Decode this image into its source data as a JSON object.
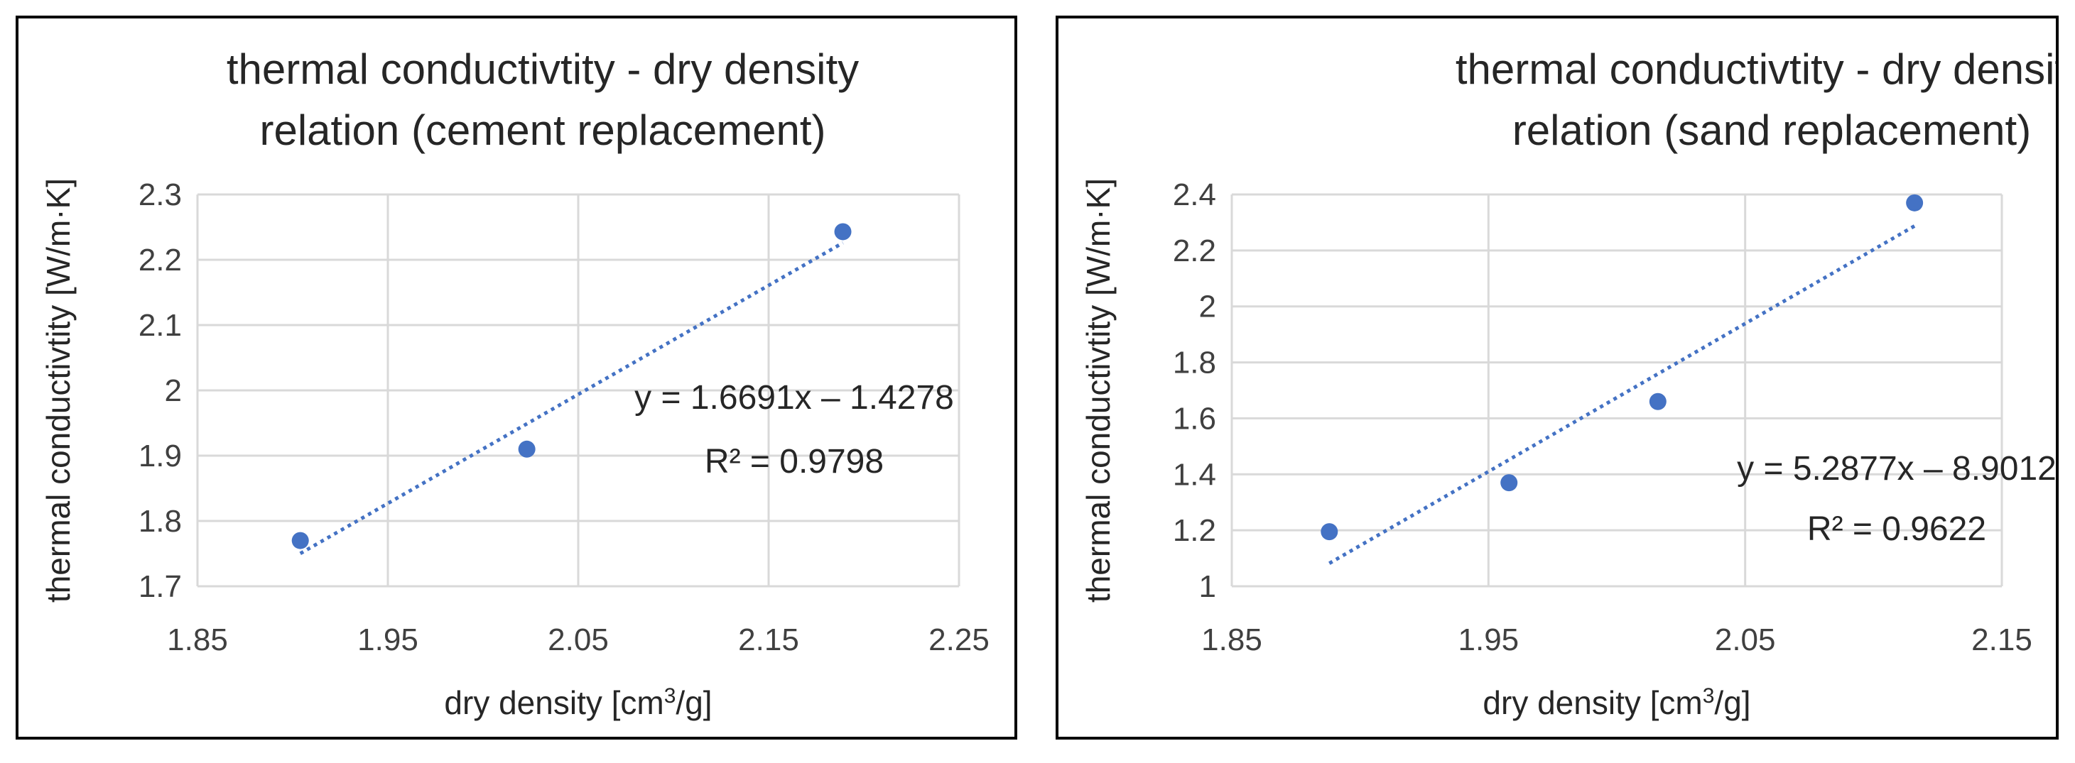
{
  "colors": {
    "marker": "#4472c4",
    "trend": "#4472c4",
    "grid": "#d9d9d9",
    "text": "#262626",
    "tick": "#404040"
  },
  "chart_data": [
    {
      "type": "scatter",
      "title": [
        "thermal conductivtity - dry density",
        "relation (cement replacement)"
      ],
      "xlabel": "dry density [cm",
      "xlabel_sup": "3",
      "xlabel_tail": "/g]",
      "ylabel": "thermal conductivtity [W/m·K]",
      "xlim": [
        1.85,
        2.25
      ],
      "ylim": [
        1.7,
        2.3
      ],
      "xticks": [
        1.85,
        1.95,
        2.05,
        2.15,
        2.25
      ],
      "xtick_labels": [
        "1.85",
        "1.95",
        "2.05",
        "2.15",
        "2.25"
      ],
      "yticks": [
        1.7,
        1.8,
        1.9,
        2.0,
        2.1,
        2.2,
        2.3
      ],
      "ytick_labels": [
        "1.7",
        "1.8",
        "1.9",
        "2",
        "2.1",
        "2.2",
        "2.3"
      ],
      "points": [
        {
          "x": 1.904,
          "y": 1.77
        },
        {
          "x": 2.023,
          "y": 1.91
        },
        {
          "x": 2.189,
          "y": 2.243
        }
      ],
      "trendline": {
        "slope": 1.6691,
        "intercept": -1.4278,
        "x_range": [
          1.904,
          2.189
        ]
      },
      "equation": "y = 1.6691x – 1.4278",
      "r2": "R² = 0.9798",
      "grid": true,
      "legend": "none"
    },
    {
      "type": "scatter",
      "title": [
        "thermal conductivtity - dry density",
        "relation (sand replacement)"
      ],
      "xlabel": "dry density [cm",
      "xlabel_sup": "3",
      "xlabel_tail": "/g]",
      "ylabel": "thermal conductivtity [W/m·K]",
      "xlim": [
        1.85,
        2.15
      ],
      "ylim": [
        1.0,
        2.4
      ],
      "xticks": [
        1.85,
        1.95,
        2.05,
        2.15
      ],
      "xtick_labels": [
        "1.85",
        "1.95",
        "2.05",
        "2.15"
      ],
      "yticks": [
        1.0,
        1.2,
        1.4,
        1.6,
        1.8,
        2.0,
        2.2,
        2.4
      ],
      "ytick_labels": [
        "1",
        "1.2",
        "1.4",
        "1.6",
        "1.8",
        "2",
        "2.2",
        "2.4"
      ],
      "points": [
        {
          "x": 1.888,
          "y": 1.195
        },
        {
          "x": 1.958,
          "y": 1.37
        },
        {
          "x": 2.016,
          "y": 1.66
        },
        {
          "x": 2.116,
          "y": 2.37
        }
      ],
      "trendline": {
        "slope": 5.2877,
        "intercept": -8.9012,
        "x_range": [
          1.888,
          2.116
        ]
      },
      "equation": "y = 5.2877x – 8.9012",
      "r2": "R² = 0.9622",
      "grid": true,
      "legend": "none"
    }
  ]
}
